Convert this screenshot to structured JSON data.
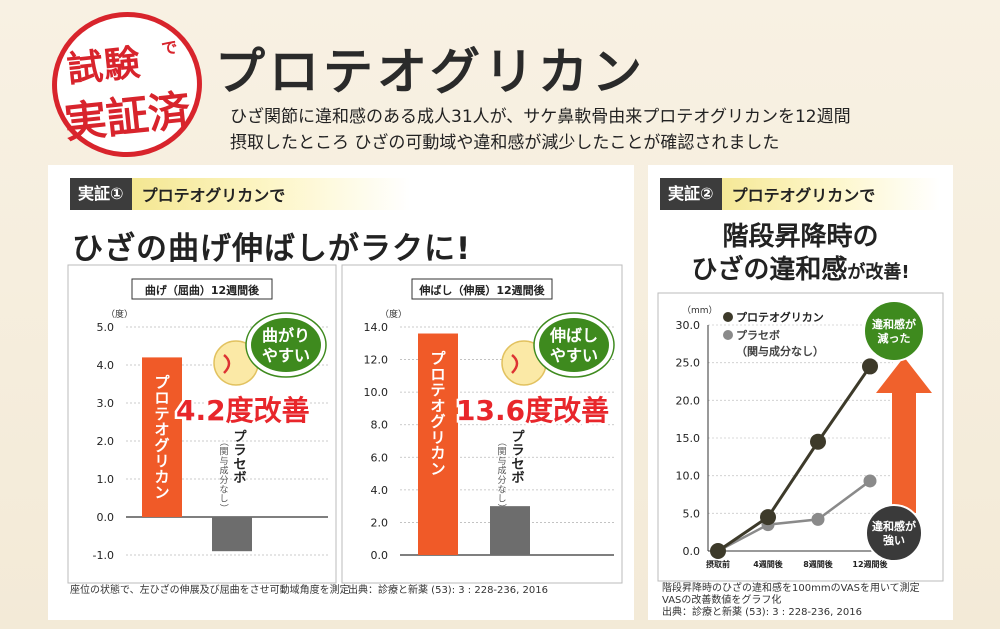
{
  "header": {
    "stamp_line1": "試験",
    "stamp_de": "で",
    "stamp_line2": "実証済",
    "title": "プロテオグリカン",
    "desc_line1": "ひざ関節に違和感のある成人31人が、サケ鼻軟骨由来プロテオグリカンを12週間",
    "desc_line2": "摂取したところ ひざの可動域や違和感が減少したことが確認されました"
  },
  "panel1": {
    "ribbon_label": "実証①",
    "ribbon_text": "プロテオグリカンで",
    "headline": "ひざの曲げ伸ばしがラクに!",
    "note": "座位の状態で、左ひざの伸展及び屈曲をさせ可動域角度を測定",
    "source": "出典：診療と新薬 (53): 3 : 228-236, 2016"
  },
  "panel2": {
    "ribbon_label": "実証②",
    "ribbon_text": "プロテオグリカンで",
    "headline_line1": "階段昇降時の",
    "headline_line2": "ひざの違和感",
    "headline_small": "が改善!",
    "note_line1": "階段昇降時のひざの違和感を100mmのVASを用いて測定",
    "note_line2": "VASの改善数値をグラフ化",
    "note_line3": "出典：診療と新薬 (53): 3 : 228-236, 2016"
  },
  "colors": {
    "accent": "#f05a28",
    "placebo": "#6d6d6d",
    "red": "#e8262b",
    "green": "#3e8a1e",
    "line_pg": "#3d3a2a",
    "line_pl": "#8a8a8a"
  },
  "chart_data": [
    {
      "type": "bar",
      "title": "曲げ（屈曲）12週間後",
      "ylabel": "（度）",
      "ylim": [
        -1.0,
        5.0
      ],
      "yticks": [
        "5.0",
        "4.0",
        "3.0",
        "2.0",
        "1.0",
        "0.0",
        "-1.0"
      ],
      "categories": [
        "プロテオグリカン",
        "プラセボ"
      ],
      "values": [
        4.2,
        -0.9
      ],
      "bar_labels": [
        "プロテオグリカン",
        "プラセボ"
      ],
      "placebo_sub": "（関与成分なし）",
      "callout": "4.2度改善",
      "bubble": [
        "曲がり",
        "やすい"
      ]
    },
    {
      "type": "bar",
      "title": "伸ばし（伸展）12週間後",
      "ylabel": "（度）",
      "ylim": [
        0,
        14.0
      ],
      "yticks": [
        "14.0",
        "12.0",
        "10.0",
        "8.0",
        "6.0",
        "4.0",
        "2.0",
        "0.0"
      ],
      "categories": [
        "プロテオグリカン",
        "プラセボ"
      ],
      "values": [
        13.6,
        3.0
      ],
      "bar_labels": [
        "プロテオグリカン",
        "プラセボ"
      ],
      "placebo_sub": "（関与成分なし）",
      "callout": "13.6度改善",
      "bubble": [
        "伸ばし",
        "やすい"
      ]
    },
    {
      "type": "line",
      "ylabel": "（mm）",
      "ylim": [
        0,
        30.0
      ],
      "yticks": [
        "30.0",
        "25.0",
        "20.0",
        "15.0",
        "10.0",
        "5.0",
        "0.0"
      ],
      "categories": [
        "摂取前",
        "4週間後",
        "8週間後",
        "12週間後"
      ],
      "series": [
        {
          "name": "プロテオグリカン",
          "values": [
            0,
            4.5,
            14.5,
            24.5
          ]
        },
        {
          "name": "プラセボ",
          "values": [
            0,
            3.5,
            4.2,
            9.3
          ]
        }
      ],
      "legend_sub": "（関与成分なし）",
      "badge_top": [
        "違和感が",
        "減った"
      ],
      "badge_bottom": [
        "違和感が",
        "強い"
      ]
    }
  ]
}
